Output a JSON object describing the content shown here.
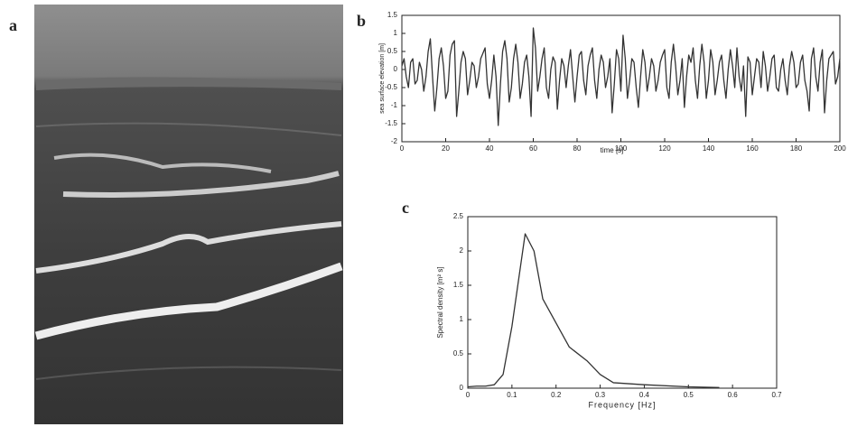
{
  "photo": {
    "label": "a"
  },
  "chart_data": [
    {
      "type": "line",
      "label": "b",
      "xlabel": "time [s]",
      "ylabel": "sea surface elevation [m]",
      "xlim": [
        0,
        200
      ],
      "xticks": [
        0,
        20,
        40,
        60,
        80,
        100,
        120,
        140,
        160,
        180,
        200
      ],
      "ylim": [
        -2,
        1.5
      ],
      "yticks": [
        -2,
        -1.5,
        -1,
        -0.5,
        0,
        0.5,
        1,
        1.5
      ],
      "color": "#333333",
      "x": [
        0,
        1,
        2,
        3,
        4,
        5,
        6,
        7,
        8,
        9,
        10,
        11,
        12,
        13,
        14,
        15,
        16,
        17,
        18,
        19,
        20,
        21,
        22,
        23,
        24,
        25,
        26,
        27,
        28,
        29,
        30,
        31,
        32,
        33,
        34,
        35,
        36,
        37,
        38,
        39,
        40,
        41,
        42,
        43,
        44,
        45,
        46,
        47,
        48,
        49,
        50,
        51,
        52,
        53,
        54,
        55,
        56,
        57,
        58,
        59,
        60,
        61,
        62,
        63,
        64,
        65,
        66,
        67,
        68,
        69,
        70,
        71,
        72,
        73,
        74,
        75,
        76,
        77,
        78,
        79,
        80,
        81,
        82,
        83,
        84,
        85,
        86,
        87,
        88,
        89,
        90,
        91,
        92,
        93,
        94,
        95,
        96,
        97,
        98,
        99,
        100,
        101,
        102,
        103,
        104,
        105,
        106,
        107,
        108,
        109,
        110,
        111,
        112,
        113,
        114,
        115,
        116,
        117,
        118,
        119,
        120,
        121,
        122,
        123,
        124,
        125,
        126,
        127,
        128,
        129,
        130,
        131,
        132,
        133,
        134,
        135,
        136,
        137,
        138,
        139,
        140,
        141,
        142,
        143,
        144,
        145,
        146,
        147,
        148,
        149,
        150,
        151,
        152,
        153,
        154,
        155,
        156,
        157,
        158,
        159,
        160,
        161,
        162,
        163,
        164,
        165,
        166,
        167,
        168,
        169,
        170,
        171,
        172,
        173,
        174,
        175,
        176,
        177,
        178,
        179,
        180,
        181,
        182,
        183,
        184,
        185,
        186,
        187,
        188,
        189,
        190,
        191,
        192,
        193,
        194,
        195,
        196,
        197,
        198,
        199,
        200
      ],
      "values": [
        0.1,
        0.3,
        -0.2,
        -0.5,
        0.2,
        0.3,
        -0.4,
        -0.3,
        0.2,
        0.0,
        -0.6,
        -0.2,
        0.5,
        0.85,
        -0.2,
        -1.15,
        -0.5,
        0.3,
        0.6,
        0.1,
        -0.8,
        -0.6,
        0.4,
        0.7,
        0.8,
        -1.3,
        -0.6,
        0.2,
        0.5,
        0.3,
        -0.7,
        -0.3,
        0.2,
        0.1,
        -0.5,
        -0.2,
        0.3,
        0.45,
        0.6,
        -0.4,
        -0.8,
        -0.3,
        0.4,
        -0.2,
        -1.55,
        -0.4,
        0.5,
        0.8,
        0.3,
        -0.9,
        -0.5,
        0.3,
        0.7,
        0.2,
        -0.8,
        -0.4,
        0.2,
        0.4,
        -0.2,
        -1.3,
        1.15,
        0.6,
        -0.6,
        -0.2,
        0.3,
        0.6,
        -0.5,
        -0.8,
        0.0,
        0.35,
        0.2,
        -1.1,
        -0.3,
        0.3,
        0.1,
        -0.5,
        0.1,
        0.55,
        -0.2,
        -0.9,
        -0.2,
        0.4,
        0.5,
        -0.3,
        -0.7,
        0.1,
        0.4,
        0.6,
        -0.3,
        -0.8,
        0.0,
        0.4,
        0.2,
        -0.5,
        -0.2,
        0.3,
        -1.2,
        -0.4,
        0.55,
        0.3,
        -0.6,
        0.95,
        0.3,
        -0.8,
        -0.3,
        0.3,
        0.2,
        -0.5,
        -1.05,
        -0.2,
        0.55,
        0.2,
        -0.6,
        -0.2,
        0.3,
        0.1,
        -0.6,
        -0.3,
        0.2,
        0.4,
        0.55,
        -0.5,
        -0.8,
        0.2,
        0.7,
        0.1,
        -0.7,
        -0.3,
        0.3,
        -1.05,
        -0.2,
        0.4,
        0.2,
        0.6,
        -0.3,
        -0.8,
        0.1,
        0.7,
        0.2,
        -0.8,
        -0.3,
        0.55,
        0.2,
        -0.7,
        -0.3,
        0.2,
        0.4,
        -0.3,
        -0.8,
        0.0,
        0.55,
        0.1,
        -0.5,
        0.6,
        -0.2,
        -0.6,
        0.1,
        -1.3,
        0.35,
        0.2,
        -0.7,
        -0.2,
        0.3,
        0.2,
        -0.5,
        0.5,
        0.1,
        -0.6,
        -0.2,
        0.3,
        0.4,
        -0.5,
        -0.6,
        0.0,
        0.3,
        -0.3,
        -0.7,
        0.1,
        0.5,
        0.2,
        -0.5,
        -0.4,
        0.2,
        0.4,
        -0.3,
        -0.6,
        -1.15,
        0.3,
        0.6,
        -0.2,
        -0.6,
        0.2,
        0.55,
        -1.2,
        -0.3,
        0.3,
        0.4,
        0.5,
        -0.4,
        -0.2,
        0.3
      ]
    },
    {
      "type": "line",
      "label": "c",
      "xlabel": "Frequency [Hz]",
      "ylabel": "Spectral density [m² s]",
      "xlim": [
        0,
        0.7
      ],
      "xticks": [
        0,
        0.1,
        0.2,
        0.3,
        0.4,
        0.5,
        0.6,
        0.7
      ],
      "ylim": [
        0,
        2.5
      ],
      "yticks": [
        0,
        0.5,
        1,
        1.5,
        2,
        2.5
      ],
      "color": "#333333",
      "x": [
        0,
        0.02,
        0.04,
        0.06,
        0.08,
        0.1,
        0.12,
        0.13,
        0.15,
        0.17,
        0.2,
        0.23,
        0.27,
        0.3,
        0.33,
        0.4,
        0.5,
        0.57
      ],
      "values": [
        0.02,
        0.03,
        0.03,
        0.05,
        0.2,
        0.9,
        1.8,
        2.25,
        2.0,
        1.3,
        0.95,
        0.6,
        0.4,
        0.2,
        0.08,
        0.05,
        0.02,
        0.01
      ]
    }
  ]
}
